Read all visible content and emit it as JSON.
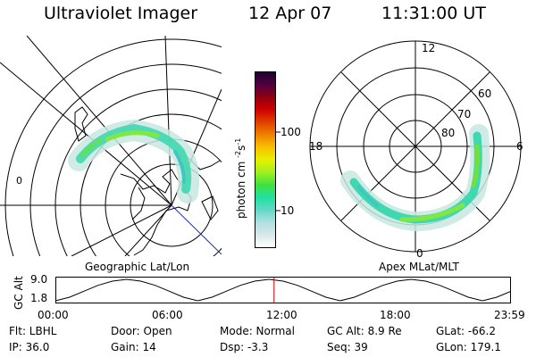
{
  "header": {
    "title": "Ultraviolet Imager",
    "date": "12 Apr 07",
    "time": "11:31:00 UT"
  },
  "left_panel": {
    "caption": "Geographic Lat/Lon"
  },
  "right_panel": {
    "caption": "Apex MLat/MLT",
    "mlt_labels": [
      "12",
      "18",
      "6",
      "0"
    ],
    "lat_labels": [
      "60",
      "70",
      "80"
    ]
  },
  "colorbar": {
    "unit_label": "photon cm",
    "unit_exp": "-2",
    "unit_s": "s",
    "unit_s_exp": "-1",
    "ticks": [
      "100",
      "10"
    ],
    "colors": [
      "#ffffff",
      "#d8e8e8",
      "#b0e0e0",
      "#60d8c8",
      "#20e0a0",
      "#40e040",
      "#a0f020",
      "#e8f000",
      "#f8c000",
      "#f08000",
      "#e04000",
      "#d00000",
      "#900010",
      "#500040",
      "#200030"
    ]
  },
  "timeline": {
    "ylabel": "GC Alt",
    "yticks": [
      "9.0",
      "1.8"
    ],
    "xticks": [
      "00:00",
      "06:00",
      "12:00",
      "18:00",
      "23:59"
    ],
    "marker_fraction": 0.4799,
    "series_alt": [
      1.8,
      3.0,
      5.0,
      7.0,
      8.4,
      9.0,
      8.4,
      7.0,
      5.0,
      3.0,
      1.8,
      3.0,
      5.0,
      7.0,
      8.4,
      9.0,
      8.4,
      7.0,
      5.0,
      3.0,
      1.8,
      3.0,
      5.0,
      7.0,
      8.4,
      9.0,
      8.4,
      7.0,
      5.0,
      3.0,
      1.8,
      3.0,
      5.0
    ]
  },
  "info": {
    "filter": "Flt: LBHL",
    "ip": "IP: 36.0",
    "door": "Door: Open",
    "gain": "Gain: 14",
    "mode": "Mode: Normal",
    "dsp": "Dsp:    -3.3",
    "gc_alt": "GC Alt: 8.9 Re",
    "seq": "Seq: 39",
    "glat": "GLat: -66.2",
    "glon": "GLon: 179.1"
  }
}
